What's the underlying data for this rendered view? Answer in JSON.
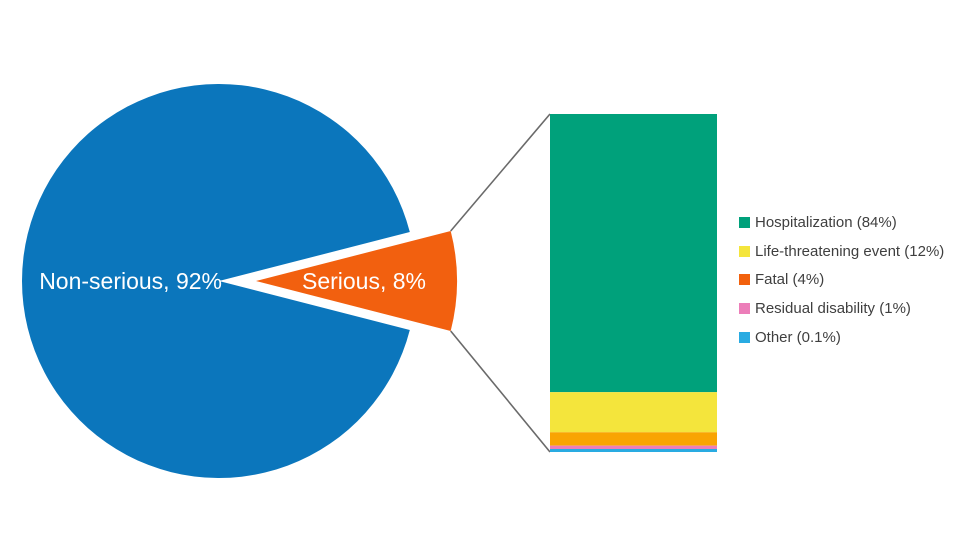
{
  "chart_data": {
    "type": "pie",
    "subtype": "pie-of-pie (exploded slice expanded into stacked bar)",
    "title": "",
    "background": "#FFFFFF",
    "pie": {
      "slices": [
        {
          "name": "Non-serious",
          "value": 92,
          "label": "Non-serious, 92%",
          "color": "#0B76BC",
          "label_color": "#FFFFFF"
        },
        {
          "name": "Serious",
          "value": 8,
          "label": "Serious, 8%",
          "color": "#F2600F",
          "label_color": "#FFFFFF",
          "exploded": true
        }
      ]
    },
    "bar": {
      "describes": "Serious, 8%",
      "segments": [
        {
          "name": "Hospitalization",
          "value": 84,
          "label": "Hospitalization (84%)",
          "color": "#00A17B",
          "bar_color": "#00A17B"
        },
        {
          "name": "Life-threatening event",
          "value": 12,
          "label": "Life-threatening event (12%)",
          "color": "#F4E53C",
          "bar_color": "#F4E53C"
        },
        {
          "name": "Fatal",
          "value": 4,
          "label": "Fatal (4%)",
          "color": "#F2610D",
          "bar_color": "#F9A402"
        },
        {
          "name": "Residual disability",
          "value": 1,
          "label": "Residual disability (1%)",
          "color": "#EC7EB9",
          "bar_color": "#EC7EB9"
        },
        {
          "name": "Other",
          "value": 0.1,
          "label": "Other (0.1%)",
          "color": "#29ABE2",
          "bar_color": "#29ABE2"
        }
      ]
    },
    "legend": {
      "position": "right"
    },
    "connector_color": "#6A6A6A",
    "text_color": "#3F3F3F"
  }
}
